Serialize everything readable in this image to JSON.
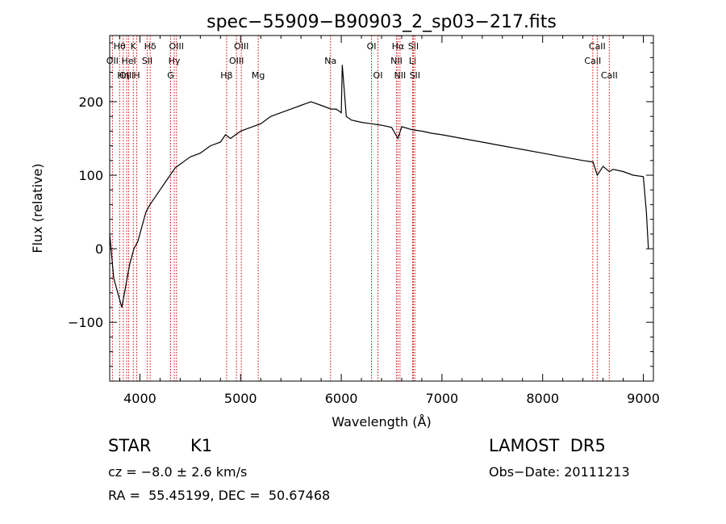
{
  "chart_data": {
    "type": "line",
    "title": "spec−55909−B90903_2_sp03−217.fits",
    "xlabel": "Wavelength (Å)",
    "ylabel": "Flux (relative)",
    "xlim": [
      3700,
      9100
    ],
    "ylim": [
      -180,
      290
    ],
    "xticks": [
      4000,
      5000,
      6000,
      7000,
      8000,
      9000
    ],
    "yticks": [
      -100,
      0,
      100,
      200
    ],
    "xtick_labels": [
      "4000",
      "5000",
      "6000",
      "7000",
      "8000",
      "9000"
    ],
    "ytick_labels": [
      "−100",
      "0",
      "100",
      "200"
    ],
    "series": [
      {
        "x": [
          3700,
          3740,
          3780,
          3820,
          3860,
          3900,
          3940,
          3980,
          4020,
          4060,
          4100,
          4150,
          4200,
          4250,
          4300,
          4350,
          4400,
          4450,
          4500,
          4600,
          4700,
          4800,
          4850,
          4900,
          5000,
          5100,
          5200,
          5300,
          5400,
          5500,
          5600,
          5700,
          5800,
          5900,
          5950,
          6000,
          6010,
          6050,
          6100,
          6200,
          6300,
          6400,
          6500,
          6563,
          6600,
          6700,
          6800,
          6900,
          7000,
          7200,
          7400,
          7600,
          7800,
          8000,
          8200,
          8400,
          8500,
          8542,
          8600,
          8662,
          8700,
          8800,
          8900,
          9000,
          9030,
          9050
        ],
        "y": [
          20,
          -40,
          -60,
          -80,
          -50,
          -20,
          0,
          10,
          30,
          50,
          60,
          70,
          80,
          90,
          100,
          110,
          115,
          120,
          125,
          130,
          140,
          145,
          155,
          150,
          160,
          165,
          170,
          180,
          185,
          190,
          195,
          200,
          195,
          190,
          190,
          185,
          250,
          180,
          175,
          172,
          170,
          168,
          165,
          150,
          166,
          162,
          160,
          157,
          155,
          150,
          145,
          140,
          135,
          130,
          125,
          120,
          118,
          100,
          112,
          105,
          108,
          105,
          100,
          98,
          50,
          0
        ]
      }
    ],
    "emission_lines": [
      {
        "label": "OII",
        "x": 3727,
        "row": 1
      },
      {
        "label": "Hθ",
        "x": 3798,
        "row": 0
      },
      {
        "label": "OIII",
        "x": 3869,
        "row": 2
      },
      {
        "label": "HeI",
        "x": 3889,
        "row": 1
      },
      {
        "label": "Hη",
        "x": 3835,
        "row": 2
      },
      {
        "label": "K",
        "x": 3934,
        "row": 0
      },
      {
        "label": "H",
        "x": 3969,
        "row": 2
      },
      {
        "label": "SII",
        "x": 4072,
        "row": 1
      },
      {
        "label": "Hδ",
        "x": 4102,
        "row": 0
      },
      {
        "label": "G",
        "x": 4305,
        "row": 2
      },
      {
        "label": "Hγ",
        "x": 4341,
        "row": 1
      },
      {
        "label": "OIII",
        "x": 4363,
        "row": 0
      },
      {
        "label": "Hβ",
        "x": 4861,
        "row": 2
      },
      {
        "label": "OIII",
        "x": 4959,
        "row": 1
      },
      {
        "label": "OIII",
        "x": 5007,
        "row": 0
      },
      {
        "label": "Mg",
        "x": 5175,
        "row": 2
      },
      {
        "label": "Na",
        "x": 5893,
        "row": 1
      },
      {
        "label": "OI",
        "x": 6300,
        "row": 0
      },
      {
        "label": "OI",
        "x": 6364,
        "row": 2
      },
      {
        "label": "NII",
        "x": 6548,
        "row": 1
      },
      {
        "label": "Hα",
        "x": 6563,
        "row": 0
      },
      {
        "label": "NII",
        "x": 6583,
        "row": 2
      },
      {
        "label": "Li",
        "x": 6708,
        "row": 1
      },
      {
        "label": "SII",
        "x": 6716,
        "row": 0
      },
      {
        "label": "SII",
        "x": 6731,
        "row": 2
      },
      {
        "label": "CaII",
        "x": 8498,
        "row": 1
      },
      {
        "label": "CaII",
        "x": 8542,
        "row": 0
      },
      {
        "label": "CaII",
        "x": 8662,
        "row": 2
      }
    ]
  },
  "info": {
    "object_class": "STAR",
    "subclass": "K1",
    "survey": "LAMOST  DR5",
    "cz": "cz = −8.0 ± 2.6 km/s",
    "obs_date": "Obs−Date: 20111213",
    "coords": "RA =  55.45199, DEC =  50.67468"
  }
}
